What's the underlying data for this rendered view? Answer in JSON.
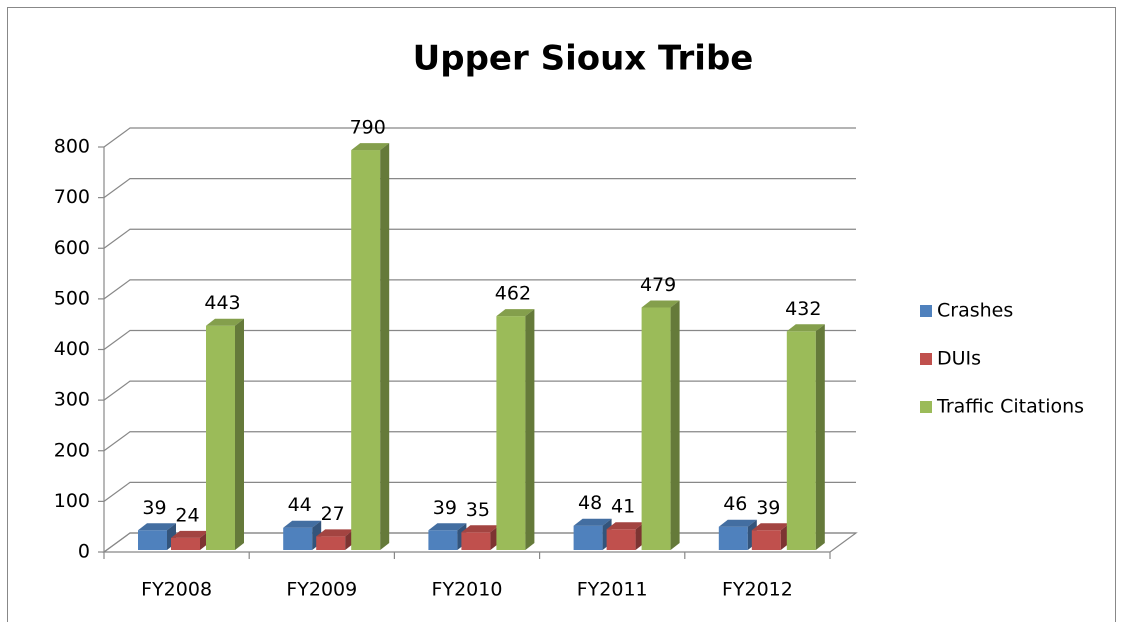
{
  "chart_data": {
    "type": "bar3d",
    "title": "Upper Sioux Tribe",
    "categories": [
      "FY2008",
      "FY2009",
      "FY2010",
      "FY2011",
      "FY2012"
    ],
    "series": [
      {
        "name": "Crashes",
        "color": "#4f81bd",
        "values": [
          39,
          44,
          39,
          48,
          46
        ]
      },
      {
        "name": "DUIs",
        "color": "#c0504d",
        "values": [
          24,
          27,
          35,
          41,
          39
        ]
      },
      {
        "name": "Traffic Citations",
        "color": "#9bbb59",
        "values": [
          443,
          790,
          462,
          479,
          432
        ]
      }
    ],
    "ylim": [
      0,
      800
    ],
    "yticks": [
      0,
      100,
      200,
      300,
      400,
      500,
      600,
      700,
      800
    ],
    "grid": true,
    "legend": "right"
  }
}
